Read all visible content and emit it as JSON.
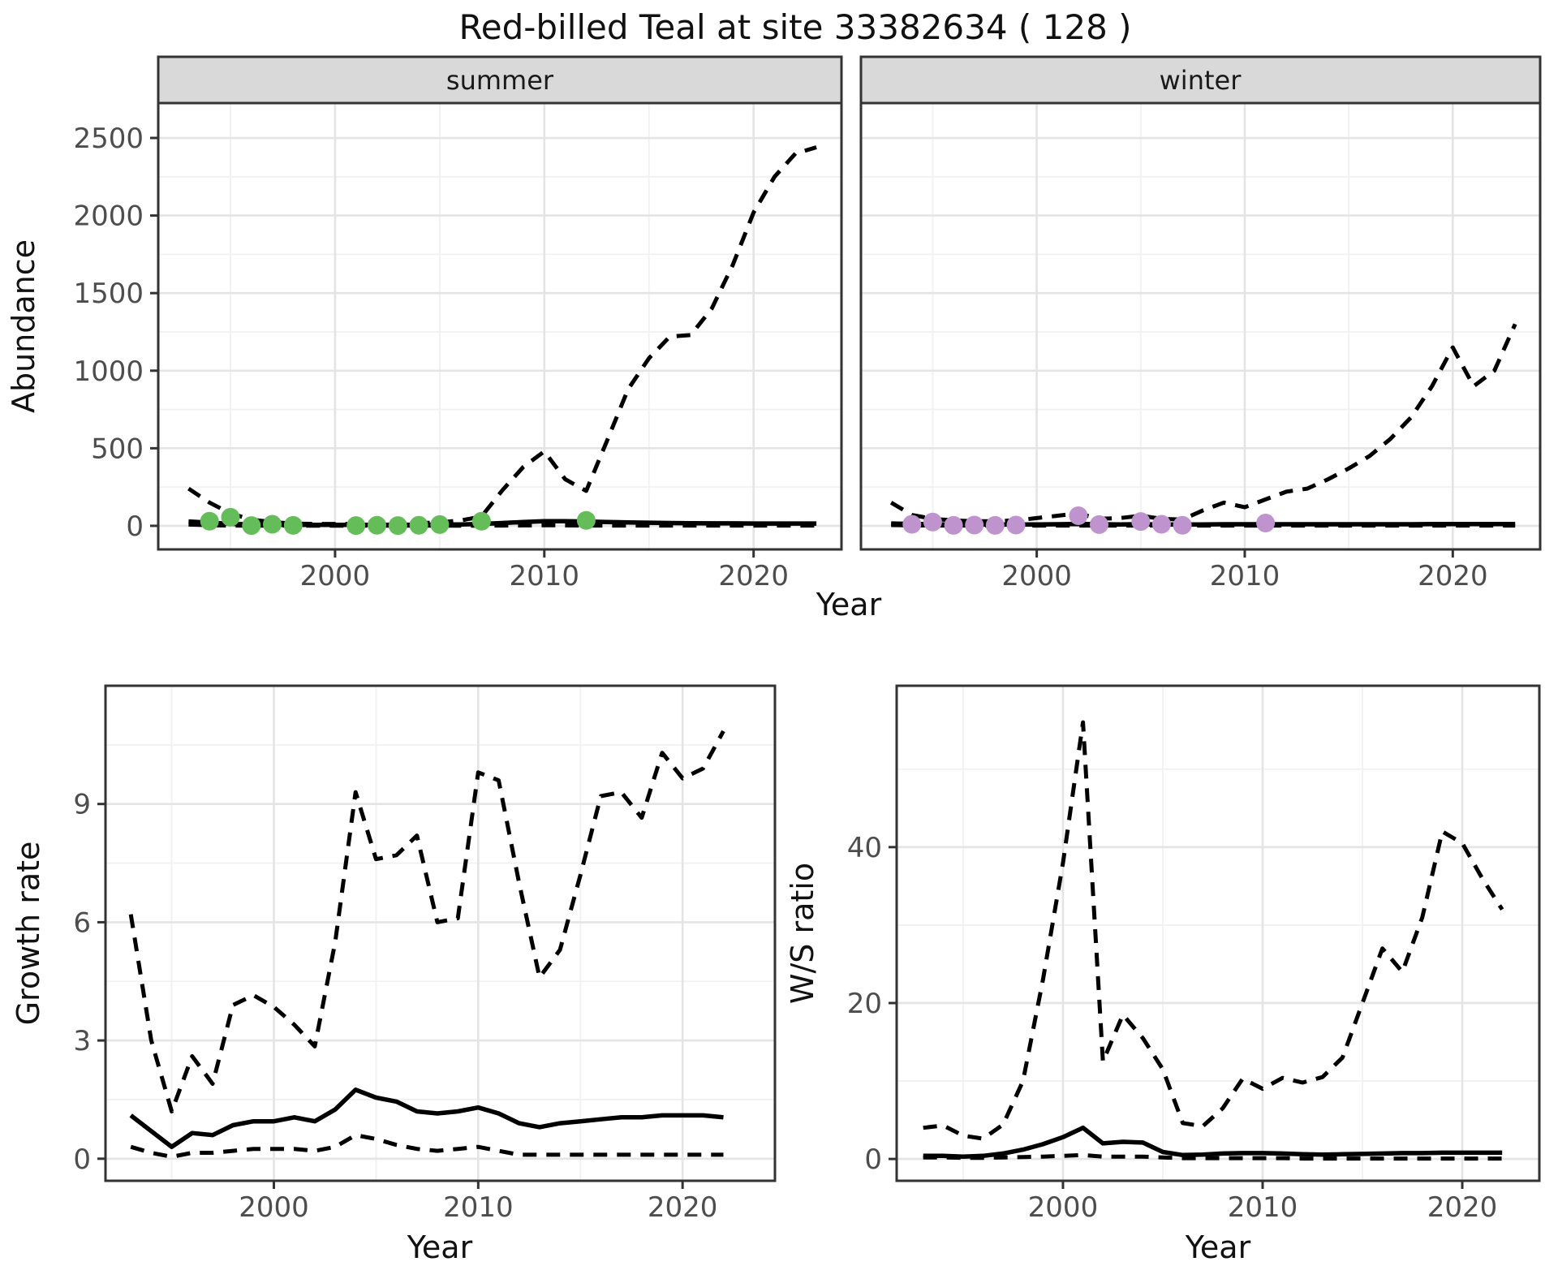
{
  "title": "Red-billed Teal at site 33382634 ( 128 )",
  "colors": {
    "summer_point": "#65bd5a",
    "winter_point": "#bf93cd",
    "line": "#000000",
    "strip_bg": "#d9d9d9",
    "panel_border": "#333333",
    "grid_major": "#e4e4e4",
    "grid_minor": "#f1f1f1",
    "axis_text": "#4d4d4d",
    "tick_mark": "#333333"
  },
  "chart_data": [
    {
      "id": "abundance_summer",
      "type": "line",
      "facet": "summer",
      "ylabel": "Abundance",
      "xlabel": "Year",
      "xlim": [
        1991.55,
        2024.2
      ],
      "ylim": [
        -152,
        2725
      ],
      "xticks": [
        2000,
        2010,
        2020
      ],
      "yticks": [
        0,
        500,
        1000,
        1500,
        2000,
        2500
      ],
      "x": [
        1993,
        1994,
        1995,
        1996,
        1997,
        1998,
        1999,
        2000,
        2001,
        2002,
        2003,
        2004,
        2005,
        2006,
        2007,
        2008,
        2009,
        2010,
        2011,
        2012,
        2013,
        2014,
        2015,
        2016,
        2017,
        2018,
        2019,
        2020,
        2021,
        2022,
        2023
      ],
      "series": [
        {
          "name": "upper_ci",
          "style": "dashed",
          "values": [
            240,
            150,
            80,
            40,
            25,
            15,
            12,
            12,
            12,
            12,
            15,
            18,
            22,
            35,
            60,
            230,
            380,
            480,
            300,
            225,
            550,
            880,
            1080,
            1220,
            1230,
            1400,
            1680,
            2020,
            2250,
            2400,
            2440
          ]
        },
        {
          "name": "mean",
          "style": "solid",
          "values": [
            28,
            20,
            13,
            9,
            7,
            6,
            6,
            6,
            6,
            6,
            7,
            7,
            8,
            9,
            12,
            18,
            25,
            30,
            30,
            28,
            25,
            22,
            20,
            18,
            17,
            16,
            16,
            15,
            15,
            15,
            15
          ]
        },
        {
          "name": "lower_ci",
          "style": "dashed",
          "values": [
            8,
            4,
            2,
            1,
            1,
            1,
            1,
            1,
            1,
            1,
            1,
            1,
            1,
            1,
            1,
            2,
            3,
            4,
            3,
            2,
            2,
            2,
            2,
            2,
            2,
            2,
            2,
            2,
            2,
            2,
            2
          ]
        }
      ],
      "points": {
        "name": "observed-count",
        "color_key": "summer_point",
        "x": [
          1994,
          1995,
          1996,
          1997,
          1998,
          2001,
          2002,
          2003,
          2004,
          2005,
          2007,
          2012
        ],
        "y": [
          30,
          55,
          2,
          10,
          3,
          2,
          4,
          2,
          4,
          8,
          30,
          35
        ]
      }
    },
    {
      "id": "abundance_winter",
      "type": "line",
      "facet": "winter",
      "ylabel": "Abundance",
      "xlabel": "Year",
      "xlim": [
        1991.55,
        2024.2
      ],
      "ylim": [
        -152,
        2725
      ],
      "xticks": [
        2000,
        2010,
        2020
      ],
      "yticks": [
        0,
        500,
        1000,
        1500,
        2000,
        2500
      ],
      "x": [
        1993,
        1994,
        1995,
        1996,
        1997,
        1998,
        1999,
        2000,
        2001,
        2002,
        2003,
        2004,
        2005,
        2006,
        2007,
        2008,
        2009,
        2010,
        2011,
        2012,
        2013,
        2014,
        2015,
        2016,
        2017,
        2018,
        2019,
        2020,
        2021,
        2022,
        2023
      ],
      "series": [
        {
          "name": "upper_ci",
          "style": "dashed",
          "values": [
            150,
            70,
            45,
            35,
            30,
            30,
            35,
            50,
            65,
            80,
            45,
            50,
            65,
            45,
            40,
            100,
            150,
            120,
            170,
            220,
            240,
            300,
            370,
            450,
            560,
            700,
            900,
            1150,
            900,
            1000,
            1300
          ]
        },
        {
          "name": "mean",
          "style": "solid",
          "values": [
            15,
            12,
            10,
            8,
            8,
            8,
            8,
            9,
            10,
            12,
            10,
            9,
            10,
            9,
            8,
            9,
            10,
            10,
            10,
            10,
            10,
            10,
            10,
            10,
            10,
            10,
            11,
            11,
            11,
            11,
            11
          ]
        },
        {
          "name": "lower_ci",
          "style": "dashed",
          "values": [
            5,
            3,
            2,
            2,
            2,
            2,
            2,
            2,
            2,
            2,
            2,
            2,
            2,
            2,
            2,
            2,
            2,
            2,
            2,
            2,
            2,
            2,
            2,
            2,
            2,
            2,
            2,
            2,
            2,
            2,
            2
          ]
        }
      ],
      "points": {
        "name": "observed-count",
        "color_key": "winter_point",
        "x": [
          1994,
          1995,
          1996,
          1997,
          1998,
          1999,
          2002,
          2003,
          2005,
          2006,
          2007,
          2011
        ],
        "y": [
          10,
          25,
          3,
          5,
          3,
          5,
          65,
          8,
          28,
          10,
          4,
          18
        ]
      }
    },
    {
      "id": "growth_rate",
      "type": "line",
      "facet": null,
      "ylabel": "Growth rate",
      "xlabel": "Year",
      "xlim": [
        1991.76,
        2024.52
      ],
      "ylim": [
        -0.56,
        12.0
      ],
      "xticks": [
        2000,
        2010,
        2020
      ],
      "yticks": [
        0,
        3,
        6,
        9
      ],
      "x": [
        1993,
        1994,
        1995,
        1996,
        1997,
        1998,
        1999,
        2000,
        2001,
        2002,
        2003,
        2004,
        2005,
        2006,
        2007,
        2008,
        2009,
        2010,
        2011,
        2012,
        2013,
        2014,
        2015,
        2016,
        2017,
        2018,
        2019,
        2020,
        2021,
        2022
      ],
      "series": [
        {
          "name": "upper_ci",
          "style": "dashed",
          "values": [
            6.2,
            3.0,
            1.2,
            2.6,
            1.9,
            3.9,
            4.15,
            3.85,
            3.4,
            2.85,
            5.5,
            9.3,
            7.6,
            7.7,
            8.2,
            6.0,
            6.1,
            9.8,
            9.6,
            7.0,
            4.6,
            5.3,
            7.2,
            9.2,
            9.3,
            8.65,
            10.3,
            9.65,
            9.9,
            10.85
          ]
        },
        {
          "name": "mean",
          "style": "solid",
          "values": [
            1.1,
            0.7,
            0.3,
            0.65,
            0.6,
            0.85,
            0.95,
            0.95,
            1.05,
            0.95,
            1.25,
            1.75,
            1.55,
            1.45,
            1.2,
            1.15,
            1.2,
            1.3,
            1.15,
            0.9,
            0.8,
            0.9,
            0.95,
            1.0,
            1.05,
            1.05,
            1.1,
            1.1,
            1.1,
            1.05
          ]
        },
        {
          "name": "lower_ci",
          "style": "dashed",
          "values": [
            0.3,
            0.15,
            0.05,
            0.15,
            0.15,
            0.2,
            0.25,
            0.25,
            0.25,
            0.2,
            0.3,
            0.6,
            0.5,
            0.35,
            0.25,
            0.2,
            0.25,
            0.3,
            0.2,
            0.1,
            0.1,
            0.1,
            0.1,
            0.1,
            0.1,
            0.1,
            0.1,
            0.1,
            0.1,
            0.1
          ]
        }
      ],
      "points": null
    },
    {
      "id": "ws_ratio",
      "type": "line",
      "facet": null,
      "ylabel": "W/S ratio",
      "xlabel": "Year",
      "xlim": [
        1991.67,
        2023.86
      ],
      "ylim": [
        -2.8,
        60.7
      ],
      "xticks": [
        2000,
        2010,
        2020
      ],
      "yticks": [
        0,
        20,
        40
      ],
      "x": [
        1993,
        1994,
        1995,
        1996,
        1997,
        1998,
        1999,
        2000,
        2001,
        2002,
        2003,
        2004,
        2005,
        2006,
        2007,
        2008,
        2009,
        2010,
        2011,
        2012,
        2013,
        2014,
        2015,
        2016,
        2017,
        2018,
        2019,
        2020,
        2021,
        2022
      ],
      "series": [
        {
          "name": "upper_ci",
          "style": "dashed",
          "values": [
            4.0,
            4.3,
            3.0,
            2.6,
            4.4,
            10,
            23,
            38,
            56,
            12.5,
            18.5,
            15.5,
            11.5,
            4.6,
            4.2,
            6.5,
            10.3,
            9.0,
            10.4,
            9.8,
            10.5,
            13,
            20,
            27,
            24,
            31,
            42,
            40.5,
            36,
            32
          ]
        },
        {
          "name": "mean",
          "style": "solid",
          "values": [
            0.4,
            0.4,
            0.3,
            0.4,
            0.7,
            1.2,
            1.9,
            2.8,
            4.0,
            2.0,
            2.2,
            2.1,
            0.9,
            0.5,
            0.55,
            0.7,
            0.75,
            0.75,
            0.7,
            0.6,
            0.55,
            0.6,
            0.65,
            0.7,
            0.75,
            0.75,
            0.8,
            0.8,
            0.8,
            0.8
          ]
        },
        {
          "name": "lower_ci",
          "style": "dashed",
          "values": [
            0.2,
            0.2,
            0.15,
            0.15,
            0.2,
            0.25,
            0.3,
            0.4,
            0.5,
            0.3,
            0.3,
            0.3,
            0.2,
            0.1,
            0.1,
            0.1,
            0.1,
            0.1,
            0.1,
            0.05,
            0.05,
            0.05,
            0.05,
            0.05,
            0.05,
            0.05,
            0.05,
            0.05,
            0.05,
            0.05
          ]
        }
      ],
      "points": null
    }
  ]
}
